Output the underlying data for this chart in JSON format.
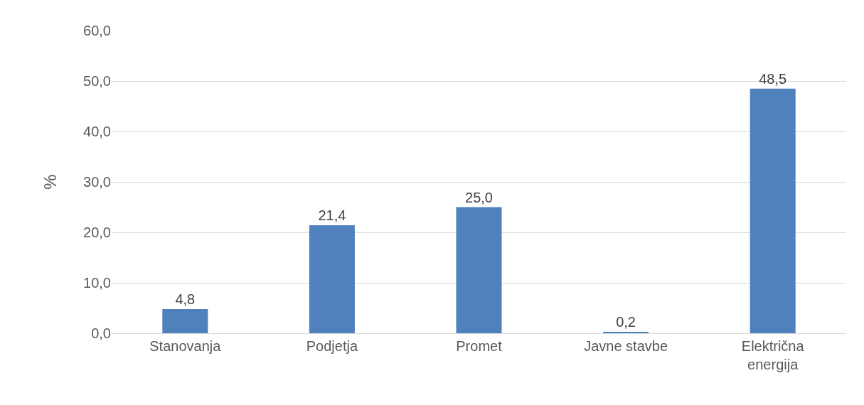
{
  "chart_data": {
    "type": "bar",
    "ylabel": "%",
    "categories": [
      "Stanovanja",
      "Podjetja",
      "Promet",
      "Javne stavbe",
      "Električna energija"
    ],
    "values": [
      4.8,
      21.4,
      25.0,
      0.2,
      48.5
    ],
    "value_labels": [
      "4,8",
      "21,4",
      "25,0",
      "0,2",
      "48,5"
    ],
    "color": "#4f81bd",
    "ylim": [
      0,
      60
    ],
    "yticks": [
      {
        "value": 0,
        "label": "0,0"
      },
      {
        "value": 10,
        "label": "10,0"
      },
      {
        "value": 20,
        "label": "20,0"
      },
      {
        "value": 30,
        "label": "30,0"
      },
      {
        "value": 40,
        "label": "40,0"
      },
      {
        "value": 50,
        "label": "50,0"
      },
      {
        "value": 60,
        "label": "60,0"
      }
    ],
    "grid": "y"
  }
}
